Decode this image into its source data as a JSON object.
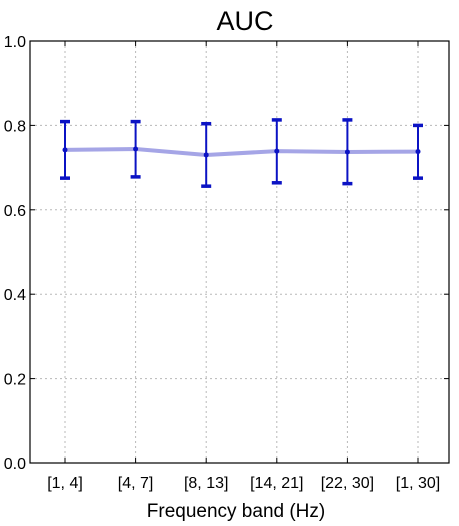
{
  "chart_data": {
    "type": "line",
    "title": "AUC",
    "xlabel": "Frequency band (Hz)",
    "ylabel": "",
    "categories": [
      "[1, 4]",
      "[4, 7]",
      "[8, 13]",
      "[14, 21]",
      "[22, 30]",
      "[1, 30]"
    ],
    "series": [
      {
        "values": [
          0.742,
          0.744,
          0.73,
          0.739,
          0.737,
          0.738
        ],
        "error_low": [
          0.675,
          0.678,
          0.656,
          0.664,
          0.662,
          0.675
        ],
        "error_high": [
          0.809,
          0.809,
          0.804,
          0.813,
          0.813,
          0.8
        ]
      }
    ],
    "ylim": [
      0.0,
      1.0
    ],
    "yticks": [
      "0.0",
      "0.2",
      "0.4",
      "0.6",
      "0.8",
      "1.0"
    ],
    "grid": true,
    "colors": {
      "line": "#8f8fe0",
      "error_bar": "#0b13c4"
    }
  }
}
